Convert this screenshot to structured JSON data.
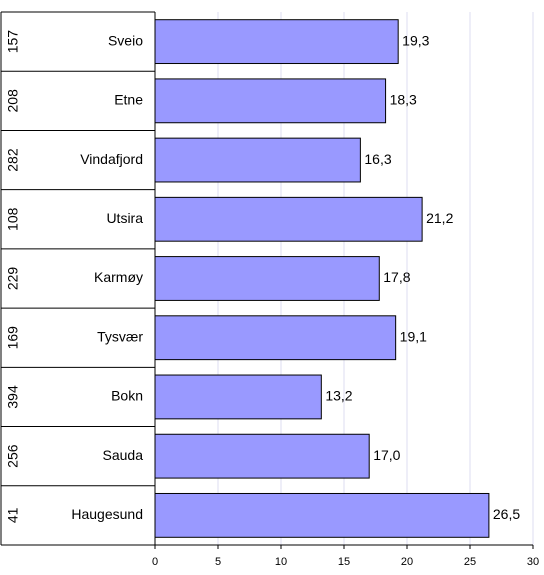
{
  "chart_data": {
    "type": "bar",
    "orientation": "horizontal",
    "categories": [
      "Sveio",
      "Etne",
      "Vindafjord",
      "Utsira",
      "Karmøy",
      "Tysvær",
      "Bokn",
      "Sauda",
      "Haugesund"
    ],
    "ranks": [
      157,
      208,
      282,
      108,
      229,
      169,
      394,
      256,
      41
    ],
    "values": [
      19.3,
      18.3,
      16.3,
      21.2,
      17.8,
      19.1,
      13.2,
      17.0,
      26.5
    ],
    "value_labels": [
      "19,3",
      "18,3",
      "16,3",
      "21,2",
      "17,8",
      "19,1",
      "13,2",
      "17,0",
      "26,5"
    ],
    "color": "#9999ff",
    "xlim": [
      0,
      30
    ],
    "xticks": [
      0,
      5,
      10,
      15,
      20,
      25,
      30
    ],
    "grid": true
  }
}
